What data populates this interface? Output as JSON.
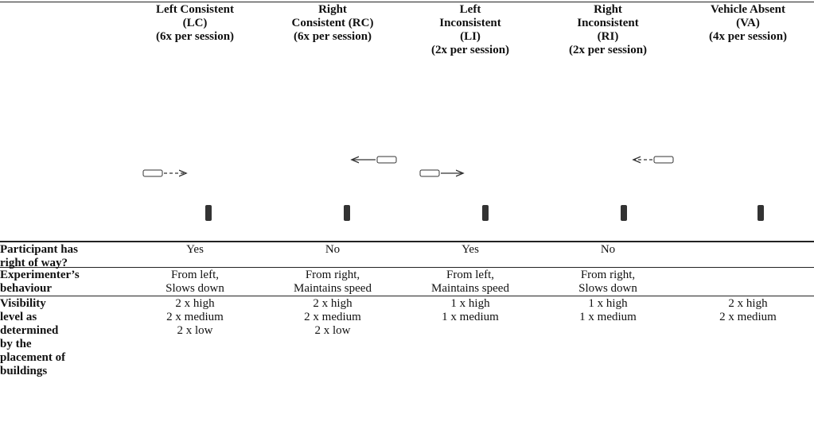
{
  "table": {
    "headers": [
      [
        "Left Consistent",
        "(LC)",
        "(6x per session)"
      ],
      [
        "Right",
        "Consistent (RC)",
        "(6x per session)"
      ],
      [
        "Left",
        "Inconsistent",
        "(LI)",
        "(2x per session)"
      ],
      [
        "Right",
        "Inconsistent",
        "(RI)",
        "(2x per session)"
      ],
      [
        "Vehicle Absent",
        "(VA)",
        "(4x per session)"
      ]
    ],
    "rows": [
      {
        "label": [
          "Participant has",
          "right of way?"
        ],
        "cells": [
          [
            "Yes"
          ],
          [
            "No"
          ],
          [
            "Yes"
          ],
          [
            "No"
          ]
        ]
      },
      {
        "label": [
          "Experimenter’s",
          "behaviour"
        ],
        "cells": [
          [
            "From left,",
            "Slows down"
          ],
          [
            "From right,",
            "Maintains speed"
          ],
          [
            "From left,",
            "Maintains speed"
          ],
          [
            "From right,",
            "Slows down"
          ]
        ]
      },
      {
        "label": [
          "Visibility",
          "level as",
          "determined",
          "by the",
          "placement of",
          "buildings"
        ],
        "cells": [
          [
            "2 x high",
            "2 x medium",
            "2 x low"
          ],
          [
            "2 x high",
            "2 x medium",
            "2 x low"
          ],
          [
            "1 x high",
            "1 x medium"
          ],
          [
            "1 x high",
            "1 x medium"
          ],
          [
            "2 x high",
            "2 x medium"
          ]
        ]
      }
    ]
  }
}
